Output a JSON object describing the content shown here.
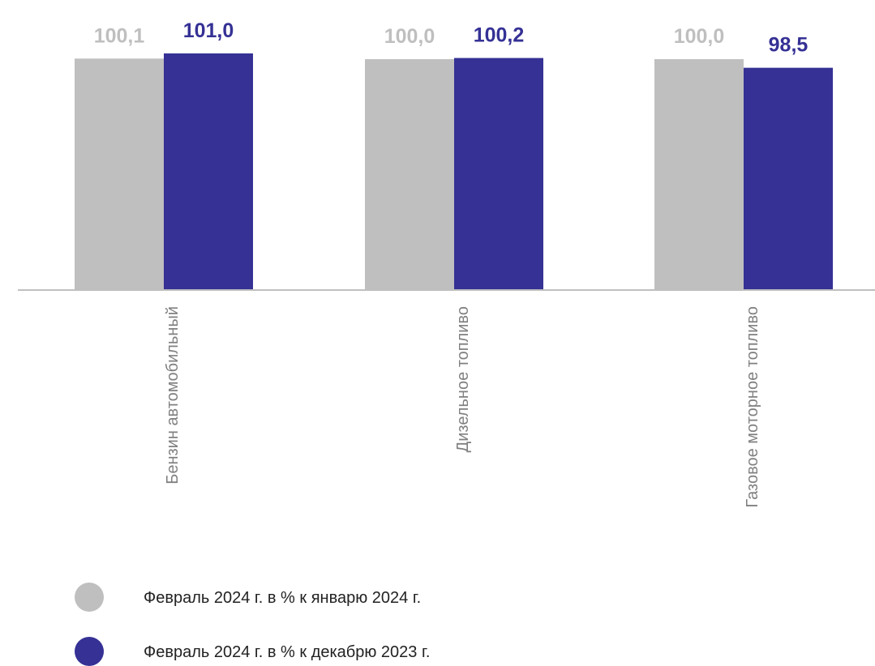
{
  "chart_data": {
    "type": "bar",
    "categories": [
      "Бензин автомобильный",
      "Дизельное топливо",
      "Газовое моторное топливо"
    ],
    "series": [
      {
        "name": "Февраль 2024 г. в % к январю 2024 г.",
        "values": [
          100.1,
          100.0,
          100.0
        ],
        "labels": [
          "100,1",
          "100,0",
          "100,0"
        ],
        "color": "#BFBFBF"
      },
      {
        "name": "Февраль 2024 г. в % к декабрю 2023 г.",
        "values": [
          101.0,
          100.2,
          98.5
        ],
        "labels": [
          "101,0",
          "100,2",
          "98,5"
        ],
        "color": "#353195"
      }
    ],
    "ylim": [
      60,
      101.4
    ],
    "legend_position": "bottom-left",
    "grid": false,
    "title": "",
    "xlabel": "",
    "ylabel": ""
  },
  "colors": {
    "axis": "#BFBFBF",
    "category_text": "#808080",
    "legend_text": "#222222"
  }
}
